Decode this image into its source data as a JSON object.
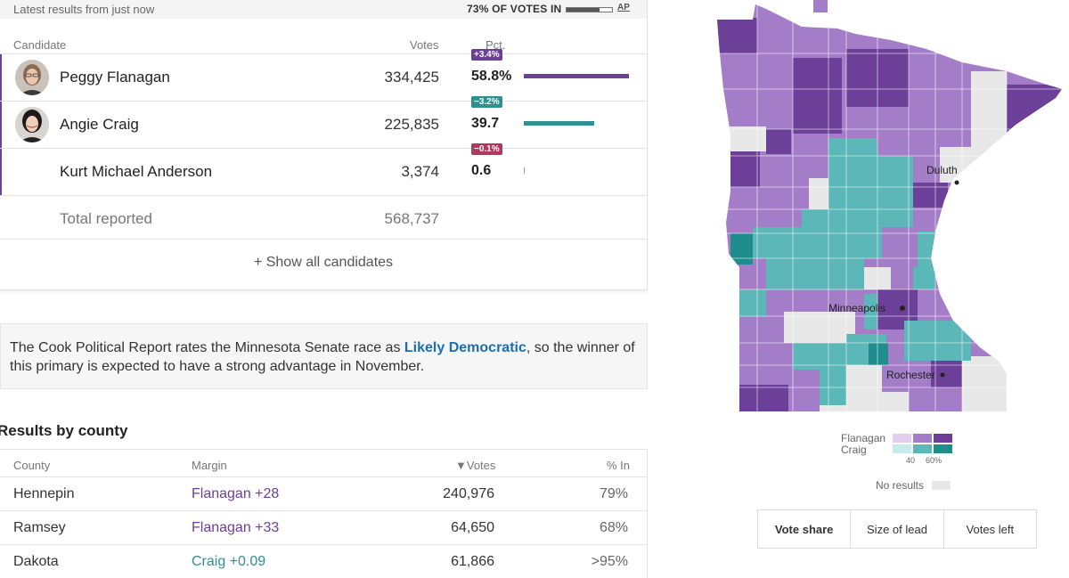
{
  "header": {
    "latest": "Latest results from just now",
    "votes_in": "73% OF VOTES IN",
    "votes_in_pct": 0.73,
    "source": "AP"
  },
  "columns": {
    "candidate": "Candidate",
    "votes": "Votes",
    "pct": "Pct."
  },
  "candidates": [
    {
      "name": "Peggy Flanagan",
      "votes": "334,425",
      "pct": "58.8%",
      "pct_value": 58.8,
      "change": "+3.4%",
      "color": "#6c3f99",
      "change_color": "#6c3f99"
    },
    {
      "name": "Angie Craig",
      "votes": "225,835",
      "pct": "39.7",
      "pct_value": 39.7,
      "change": "−3.2%",
      "color": "#2f8f91",
      "change_color": "#2f8f91"
    },
    {
      "name": "Kurt Michael Anderson",
      "votes": "3,374",
      "pct": "0.6",
      "pct_value": 0.6,
      "change": "−0.1%",
      "color": "#999999",
      "change_color": "#b0385f"
    }
  ],
  "total": {
    "label": "Total reported",
    "votes": "568,737"
  },
  "show_all": "+ Show all candidates",
  "cook": {
    "text_before": "The Cook Political Report rates the Minnesota Senate race as ",
    "link": "Likely Democratic",
    "text_after": ", so the winner of this primary is expected to have a strong advantage in November."
  },
  "county": {
    "title": "Results by county",
    "headers": {
      "county": "County",
      "margin": "Margin",
      "votes": "▼Votes",
      "in": "% In"
    },
    "rows": [
      {
        "county": "Hennepin",
        "margin": "Flanagan +28",
        "margin_color": "#6c3f99",
        "votes": "240,976",
        "in": "79%"
      },
      {
        "county": "Ramsey",
        "margin": "Flanagan +33",
        "margin_color": "#6c3f99",
        "votes": "64,650",
        "in": "68%"
      },
      {
        "county": "Dakota",
        "margin": "Craig +0.09",
        "margin_color": "#2f8f91",
        "votes": "61,866",
        "in": ">95%"
      }
    ]
  },
  "map": {
    "cities": [
      "Duluth",
      "Minneapolis",
      "Rochester"
    ]
  },
  "legend": {
    "flanagan": "Flanagan",
    "craig": "Craig",
    "tick_40": "40",
    "tick_60": "60%",
    "no_results": "No results",
    "flanagan_colors": [
      "#e3cdf0",
      "#a47dc9",
      "#6c3f99"
    ],
    "craig_colors": [
      "#c5eced",
      "#5bb7b8",
      "#1f8c8e"
    ]
  },
  "toggle": {
    "vote_share": "Vote share",
    "size_of_lead": "Size of lead",
    "votes_left": "Votes left"
  }
}
